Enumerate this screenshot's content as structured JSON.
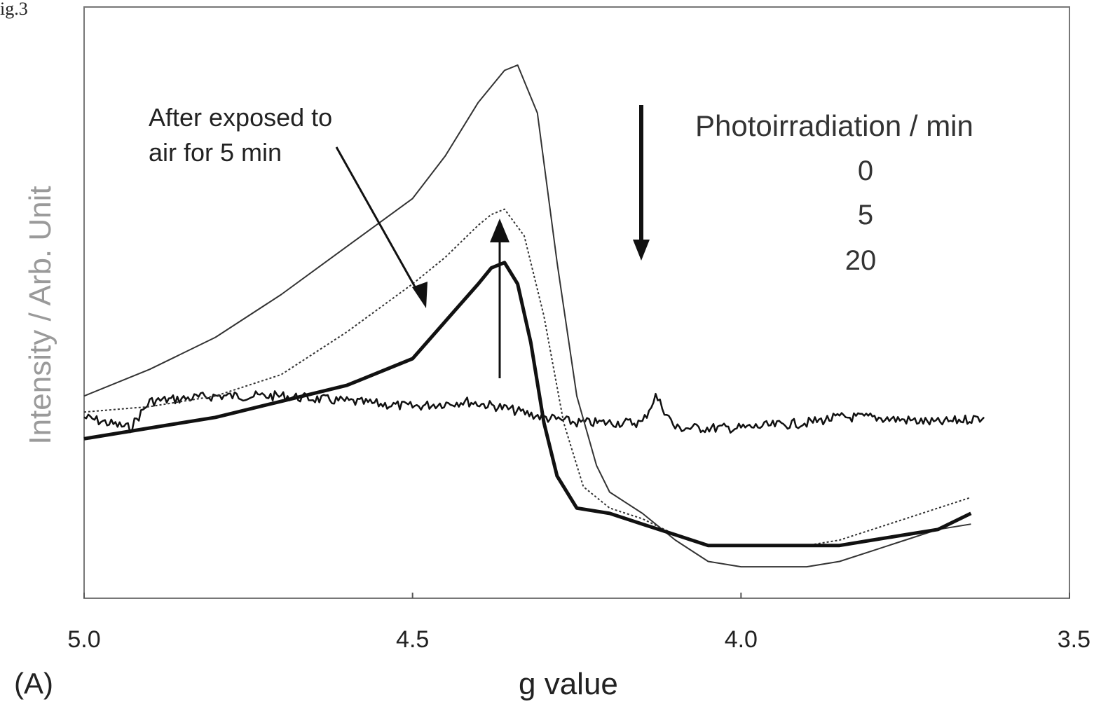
{
  "figure_label": "ig.3",
  "panel_label": "(A)",
  "chart_data": {
    "type": "line",
    "title": "",
    "xlabel": "g value",
    "ylabel": "Intensity / Arb. Unit",
    "xlim": [
      5.0,
      3.5
    ],
    "x_reversed": true,
    "ylim": [
      0,
      100
    ],
    "grid": false,
    "x_ticks": [
      "5.0",
      "4.5",
      "4.0",
      "3.5"
    ],
    "legend": {
      "title": "Photoirradiation / min",
      "entries": [
        "0",
        "5",
        "20"
      ],
      "placement": "top-right"
    },
    "annotation": "After exposed to\nair for 5 min",
    "series": [
      {
        "name": "0",
        "style": "noisy",
        "x": [
          5.0,
          4.93,
          4.9,
          4.8,
          4.7,
          4.6,
          4.5,
          4.42,
          4.37,
          4.3,
          4.25,
          4.2,
          4.15,
          4.13,
          4.1,
          4.0,
          3.9,
          3.85,
          3.8,
          3.7,
          3.63
        ],
        "y": [
          31,
          29,
          34,
          35,
          35,
          34,
          33,
          34,
          33,
          31,
          30,
          30,
          30,
          35,
          29,
          29,
          30,
          31,
          31,
          30,
          31
        ]
      },
      {
        "name": "5",
        "style": "thin",
        "x": [
          5.0,
          4.9,
          4.8,
          4.7,
          4.6,
          4.5,
          4.45,
          4.4,
          4.36,
          4.34,
          4.31,
          4.28,
          4.25,
          4.22,
          4.2,
          4.15,
          4.1,
          4.05,
          4.0,
          3.95,
          3.9,
          3.85,
          3.8,
          3.75,
          3.7,
          3.65
        ],
        "y": [
          35,
          40,
          46,
          54,
          63,
          72,
          80,
          90,
          96,
          97,
          88,
          60,
          35,
          22,
          17,
          13,
          8,
          4,
          3,
          3,
          3,
          4,
          6,
          8,
          10,
          11
        ]
      },
      {
        "name": "20",
        "style": "dotted",
        "x": [
          5.0,
          4.9,
          4.8,
          4.7,
          4.6,
          4.5,
          4.45,
          4.4,
          4.38,
          4.36,
          4.33,
          4.3,
          4.27,
          4.24,
          4.2,
          4.15,
          4.1,
          4.05,
          4.0,
          3.9,
          3.85,
          3.8,
          3.75,
          3.7,
          3.65
        ],
        "y": [
          32,
          33,
          35,
          39,
          47,
          56,
          61,
          67,
          69,
          70,
          65,
          50,
          30,
          18,
          14,
          12,
          9,
          7,
          7,
          7,
          8,
          10,
          12,
          14,
          16
        ]
      },
      {
        "name": "After exposed to air for 5 min",
        "style": "thick",
        "x": [
          5.0,
          4.9,
          4.8,
          4.7,
          4.6,
          4.5,
          4.45,
          4.4,
          4.38,
          4.36,
          4.34,
          4.32,
          4.3,
          4.28,
          4.25,
          4.2,
          4.15,
          4.1,
          4.05,
          4.0,
          3.9,
          3.85,
          3.8,
          3.75,
          3.7,
          3.65
        ],
        "y": [
          27,
          29,
          31,
          34,
          37,
          42,
          49,
          56,
          59,
          60,
          56,
          45,
          30,
          20,
          14,
          13,
          11,
          9,
          7,
          7,
          7,
          7,
          8,
          9,
          10,
          13
        ]
      }
    ]
  }
}
